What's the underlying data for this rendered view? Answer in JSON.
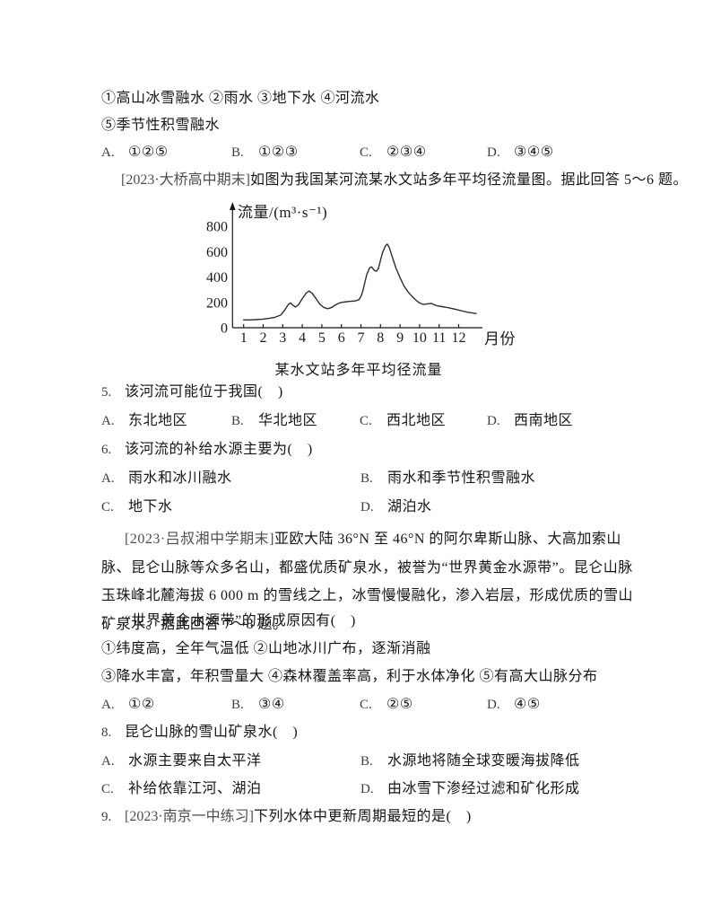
{
  "colors": {
    "background": "#ffffff",
    "text": "#161616",
    "citation": "#4e4e4e",
    "axis": "#161616",
    "curve": "#2e2e2e"
  },
  "intro": {
    "line1": "①高山冰雪融水 ②雨水 ③地下水 ④河流水",
    "line2": "⑤季节性积雪融水",
    "choices": [
      {
        "letter": "A.",
        "text": "①②⑤"
      },
      {
        "letter": "B.",
        "text": "①②③"
      },
      {
        "letter": "C.",
        "text": "②③④"
      },
      {
        "letter": "D.",
        "text": "③④⑤"
      }
    ]
  },
  "passage1": {
    "citation": "[2023·大桥高中期末]",
    "text": "如图为我国某河流某水文站多年平均径流量图。据此回答 5～6 题。"
  },
  "chart_data": {
    "type": "line",
    "title": "某水文站多年平均径流量",
    "ylabel": "流量/(m³·s⁻¹)",
    "xlabel": "月份",
    "x_ticks": [
      1,
      2,
      3,
      4,
      5,
      6,
      7,
      8,
      9,
      10,
      11,
      12
    ],
    "y_ticks": [
      0,
      200,
      400,
      600,
      800
    ],
    "ylim": [
      0,
      800
    ],
    "xlim": [
      1,
      12
    ],
    "grid": false,
    "legend": false,
    "series": [
      {
        "name": "多年平均径流量",
        "unit": "m³/s",
        "points": [
          [
            1,
            62
          ],
          [
            1.3,
            62
          ],
          [
            1.6,
            64
          ],
          [
            2,
            68
          ],
          [
            2.3,
            74
          ],
          [
            2.6,
            82
          ],
          [
            2.9,
            100
          ],
          [
            3.1,
            140
          ],
          [
            3.3,
            186
          ],
          [
            3.4,
            196
          ],
          [
            3.5,
            180
          ],
          [
            3.65,
            163
          ],
          [
            3.8,
            180
          ],
          [
            4,
            230
          ],
          [
            4.2,
            274
          ],
          [
            4.35,
            290
          ],
          [
            4.5,
            272
          ],
          [
            4.7,
            230
          ],
          [
            4.9,
            186
          ],
          [
            5.1,
            160
          ],
          [
            5.3,
            150
          ],
          [
            5.5,
            160
          ],
          [
            5.7,
            180
          ],
          [
            5.9,
            196
          ],
          [
            6.1,
            202
          ],
          [
            6.4,
            208
          ],
          [
            6.7,
            211
          ],
          [
            6.9,
            222
          ],
          [
            7,
            246
          ],
          [
            7.1,
            292
          ],
          [
            7.2,
            358
          ],
          [
            7.3,
            420
          ],
          [
            7.45,
            475
          ],
          [
            7.55,
            480
          ],
          [
            7.7,
            450
          ],
          [
            7.8,
            447
          ],
          [
            7.9,
            470
          ],
          [
            8,
            532
          ],
          [
            8.1,
            592
          ],
          [
            8.25,
            646
          ],
          [
            8.35,
            660
          ],
          [
            8.45,
            634
          ],
          [
            8.6,
            560
          ],
          [
            8.8,
            468
          ],
          [
            9,
            396
          ],
          [
            9.2,
            330
          ],
          [
            9.4,
            285
          ],
          [
            9.6,
            250
          ],
          [
            9.8,
            220
          ],
          [
            10,
            196
          ],
          [
            10.2,
            184
          ],
          [
            10.4,
            189
          ],
          [
            10.6,
            192
          ],
          [
            10.8,
            178
          ],
          [
            11,
            170
          ],
          [
            11.3,
            163
          ],
          [
            11.6,
            154
          ],
          [
            11.9,
            143
          ],
          [
            12.2,
            131
          ],
          [
            12.5,
            121
          ],
          [
            12.9,
            112
          ]
        ]
      }
    ]
  },
  "chart_caption": "某水文站多年平均径流量",
  "passage2": {
    "citation": "[2023·吕叔湘中学期末]",
    "text": "亚欧大陆 36°N 至 46°N 的阿尔卑斯山脉、大高加索山脉、昆仑山脉等众多名山，都盛优质矿泉水，被誉为“世界黄金水源带”。昆仑山脉玉珠峰北麓海拔 6 000 m 的雪线之上，冰雪慢慢融化，渗入岩层，形成优质的雪山矿泉水。据此回答 7～8 题。"
  },
  "questions": {
    "q5": {
      "number": "5.",
      "stem": "该河流可能位于我国(　)",
      "options": [
        {
          "letter": "A.",
          "text": "东北地区"
        },
        {
          "letter": "B.",
          "text": "华北地区"
        },
        {
          "letter": "C.",
          "text": "西北地区"
        },
        {
          "letter": "D.",
          "text": "西南地区"
        }
      ]
    },
    "q6": {
      "number": "6.",
      "stem": "该河流的补给水源主要为(　)",
      "options": [
        {
          "letter": "A.",
          "text": "雨水和冰川融水"
        },
        {
          "letter": "B.",
          "text": "雨水和季节性积雪融水"
        },
        {
          "letter": "C.",
          "text": "地下水"
        },
        {
          "letter": "D.",
          "text": "湖泊水"
        }
      ]
    },
    "q7": {
      "number": "7.",
      "stem": "“世界黄金水源带”的形成原因有(　)",
      "items": [
        "①纬度高，全年气温低 ②山地冰川广布，逐渐消融",
        "③降水丰富，年积雪量大 ④森林覆盖率高，利于水体净化 ⑤有高大山脉分布"
      ],
      "options": [
        {
          "letter": "A.",
          "text": "①②"
        },
        {
          "letter": "B.",
          "text": "③④"
        },
        {
          "letter": "C.",
          "text": "②⑤"
        },
        {
          "letter": "D.",
          "text": "④⑤"
        }
      ]
    },
    "q8": {
      "number": "8.",
      "stem": "昆仑山脉的雪山矿泉水(　)",
      "options": [
        {
          "letter": "A.",
          "text": "水源主要来自太平洋"
        },
        {
          "letter": "B.",
          "text": "水源地将随全球变暖海拔降低"
        },
        {
          "letter": "C.",
          "text": "补给依靠江河、湖泊"
        },
        {
          "letter": "D.",
          "text": "由冰雪下渗经过滤和矿化形成"
        }
      ]
    },
    "q9": {
      "number": "9.",
      "citation": "[2023·南京一中练习]",
      "stem": "下列水体中更新周期最短的是(　)"
    }
  }
}
